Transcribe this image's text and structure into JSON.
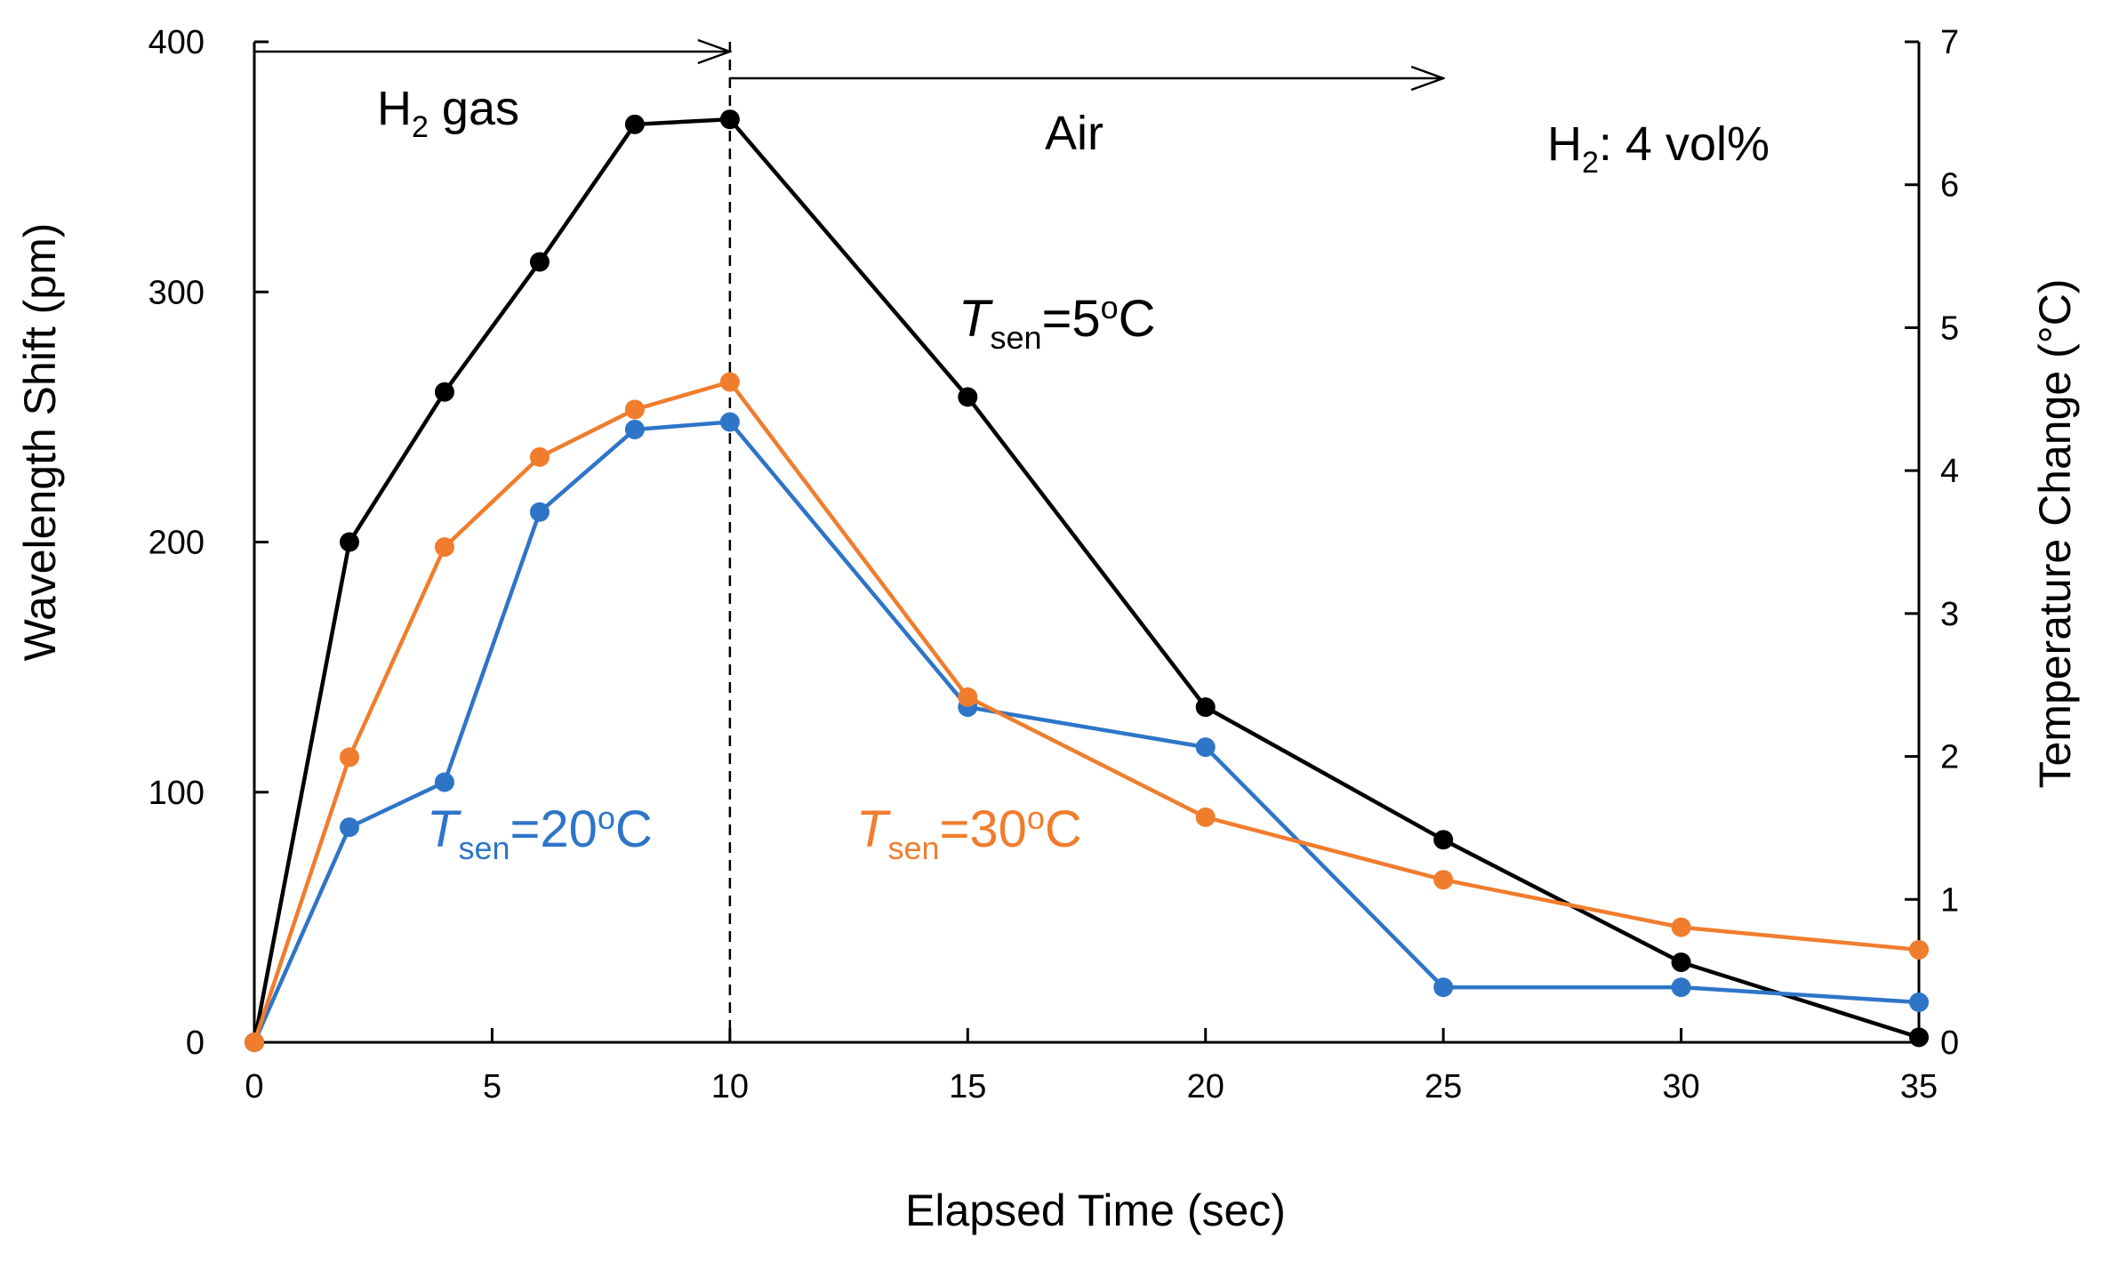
{
  "chart_data": {
    "type": "line",
    "xlabel": "Elapsed Time (sec)",
    "ylabel": "Wavelength Shift (pm)",
    "y2label": "Temperature Change (°C)",
    "xlim": [
      0,
      35
    ],
    "ylim": [
      0,
      400
    ],
    "y2lim": [
      0,
      7
    ],
    "x_ticks": [
      "0",
      "5",
      "10",
      "15",
      "20",
      "25",
      "30",
      "35"
    ],
    "y_ticks": [
      "0",
      "100",
      "200",
      "300",
      "400"
    ],
    "y2_ticks": [
      "0",
      "1",
      "2",
      "3",
      "4",
      "5",
      "6",
      "7"
    ],
    "x": [
      0,
      2,
      4,
      6,
      8,
      10,
      15,
      20,
      25,
      30,
      35
    ],
    "series": [
      {
        "name": "Tsen=5oC",
        "label_main": "T",
        "label_sub": "sen",
        "label_rest": "=5",
        "label_sup": "o",
        "label_unit": "C",
        "color": "#000000",
        "values": [
          0,
          200,
          260,
          312,
          367,
          369,
          258,
          134,
          81,
          32,
          2
        ]
      },
      {
        "name": "Tsen=20oC",
        "label_main": "T",
        "label_sub": "sen",
        "label_rest": "=20",
        "label_sup": "o",
        "label_unit": "C",
        "color": "#2E75C8",
        "values": [
          0,
          86,
          104,
          212,
          245,
          248,
          134,
          118,
          22,
          22,
          16
        ]
      },
      {
        "name": "Tsen=30oC",
        "label_main": "T",
        "label_sub": "sen",
        "label_rest": "=30",
        "label_sup": "o",
        "label_unit": "C",
        "color": "#F07D2D",
        "values": [
          0,
          114,
          198,
          234,
          253,
          264,
          138,
          90,
          65,
          46,
          37
        ]
      }
    ],
    "annotations": {
      "h2_gas": {
        "main": "H",
        "sub": "2",
        "rest": " gas",
        "arrow_from": 0,
        "arrow_to": 10
      },
      "air": {
        "text": "Air",
        "arrow_from": 10,
        "arrow_to": 25
      },
      "conc": {
        "main": "H",
        "sub": "2",
        "rest": ": 4 vol%"
      },
      "divider_x": 10
    }
  }
}
